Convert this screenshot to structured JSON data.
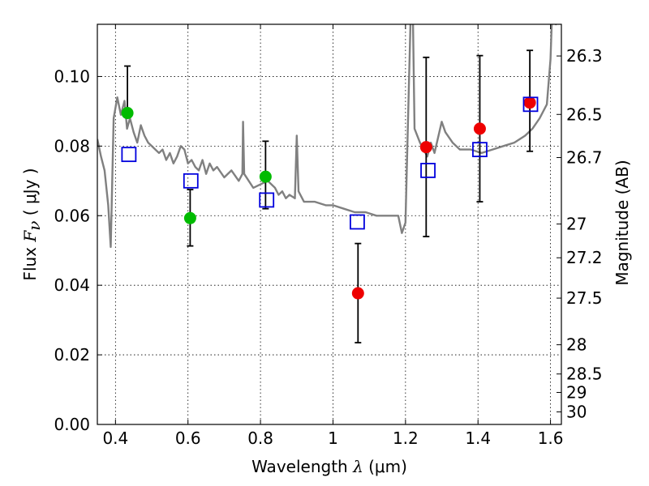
{
  "chart_data": {
    "type": "scatter",
    "xlabel": "Wavelength",
    "xlabel_symbol": "λ",
    "xlabel_unit": "(μm)",
    "ylabel": "Flux",
    "ylabel_symbol": "F",
    "ylabel_subscript": "ν",
    "ylabel_unit": "( μJy )",
    "y2label": "Magnitude (AB)",
    "xlim": [
      0.35,
      1.63
    ],
    "ylim": [
      0.0,
      0.115
    ],
    "grid": true,
    "x_ticks": [
      0.4,
      0.6,
      0.8,
      1.0,
      1.2,
      1.4,
      1.6
    ],
    "x_tick_labels": [
      "0.4",
      "0.6",
      "0.8",
      "1",
      "1.2",
      "1.4",
      "1.6"
    ],
    "y_ticks": [
      0.0,
      0.02,
      0.04,
      0.06,
      0.08,
      0.1
    ],
    "y_tick_labels": [
      "0.00",
      "0.02",
      "0.04",
      "0.06",
      "0.08",
      "0.10"
    ],
    "mag_ticks": [
      {
        "label": "26.3",
        "flux": 0.1059
      },
      {
        "label": "26.5",
        "flux": 0.0891
      },
      {
        "label": "26.7",
        "flux": 0.0767
      },
      {
        "label": "27",
        "flux": 0.0576
      },
      {
        "label": "27.2",
        "flux": 0.0479
      },
      {
        "label": "27.5",
        "flux": 0.0363
      },
      {
        "label": "28",
        "flux": 0.0229
      },
      {
        "label": "28.5",
        "flux": 0.0145
      },
      {
        "label": "29",
        "flux": 0.0092
      },
      {
        "label": "30",
        "flux": 0.0036
      }
    ],
    "series": [
      {
        "kind": "template-spectrum",
        "color": "#808080",
        "points": [
          [
            0.35,
            0.082
          ],
          [
            0.36,
            0.077
          ],
          [
            0.37,
            0.073
          ],
          [
            0.38,
            0.063
          ],
          [
            0.387,
            0.051
          ],
          [
            0.395,
            0.088
          ],
          [
            0.405,
            0.094
          ],
          [
            0.415,
            0.089
          ],
          [
            0.425,
            0.093
          ],
          [
            0.432,
            0.085
          ],
          [
            0.44,
            0.088
          ],
          [
            0.45,
            0.084
          ],
          [
            0.46,
            0.081
          ],
          [
            0.47,
            0.086
          ],
          [
            0.48,
            0.083
          ],
          [
            0.49,
            0.081
          ],
          [
            0.5,
            0.08
          ],
          [
            0.51,
            0.079
          ],
          [
            0.52,
            0.078
          ],
          [
            0.53,
            0.079
          ],
          [
            0.54,
            0.076
          ],
          [
            0.55,
            0.078
          ],
          [
            0.56,
            0.075
          ],
          [
            0.57,
            0.077
          ],
          [
            0.58,
            0.08
          ],
          [
            0.59,
            0.079
          ],
          [
            0.6,
            0.075
          ],
          [
            0.61,
            0.076
          ],
          [
            0.62,
            0.074
          ],
          [
            0.63,
            0.073
          ],
          [
            0.64,
            0.076
          ],
          [
            0.65,
            0.072
          ],
          [
            0.66,
            0.075
          ],
          [
            0.67,
            0.073
          ],
          [
            0.68,
            0.074
          ],
          [
            0.7,
            0.071
          ],
          [
            0.72,
            0.073
          ],
          [
            0.74,
            0.07
          ],
          [
            0.75,
            0.072
          ],
          [
            0.752,
            0.087
          ],
          [
            0.755,
            0.072
          ],
          [
            0.78,
            0.068
          ],
          [
            0.8,
            0.069
          ],
          [
            0.82,
            0.07
          ],
          [
            0.84,
            0.068
          ],
          [
            0.85,
            0.066
          ],
          [
            0.86,
            0.067
          ],
          [
            0.87,
            0.065
          ],
          [
            0.88,
            0.066
          ],
          [
            0.895,
            0.065
          ],
          [
            0.9,
            0.083
          ],
          [
            0.905,
            0.067
          ],
          [
            0.92,
            0.064
          ],
          [
            0.95,
            0.064
          ],
          [
            0.98,
            0.063
          ],
          [
            1.0,
            0.063
          ],
          [
            1.03,
            0.062
          ],
          [
            1.06,
            0.061
          ],
          [
            1.09,
            0.061
          ],
          [
            1.12,
            0.06
          ],
          [
            1.15,
            0.06
          ],
          [
            1.18,
            0.06
          ],
          [
            1.19,
            0.055
          ],
          [
            1.2,
            0.058
          ],
          [
            1.21,
            0.1
          ],
          [
            1.215,
            0.12
          ],
          [
            1.22,
            0.12
          ],
          [
            1.225,
            0.085
          ],
          [
            1.24,
            0.081
          ],
          [
            1.26,
            0.077
          ],
          [
            1.27,
            0.081
          ],
          [
            1.28,
            0.078
          ],
          [
            1.3,
            0.087
          ],
          [
            1.31,
            0.084
          ],
          [
            1.33,
            0.081
          ],
          [
            1.35,
            0.079
          ],
          [
            1.38,
            0.079
          ],
          [
            1.41,
            0.078
          ],
          [
            1.44,
            0.079
          ],
          [
            1.47,
            0.08
          ],
          [
            1.5,
            0.081
          ],
          [
            1.53,
            0.083
          ],
          [
            1.55,
            0.085
          ],
          [
            1.57,
            0.088
          ],
          [
            1.59,
            0.092
          ],
          [
            1.6,
            0.105
          ],
          [
            1.605,
            0.12
          ],
          [
            1.61,
            0.12
          ],
          [
            1.615,
            0.115
          ],
          [
            1.62,
            0.12
          ],
          [
            1.625,
            0.12
          ]
        ]
      },
      {
        "kind": "observed-green",
        "color": "#00bb00",
        "points": [
          {
            "x": 0.433,
            "y": 0.0895,
            "err_hi": 0.103,
            "err_lo": 0.0895
          },
          {
            "x": 0.606,
            "y": 0.0593,
            "err_hi": 0.0675,
            "err_lo": 0.0513
          },
          {
            "x": 0.814,
            "y": 0.0712,
            "err_hi": 0.0814,
            "err_lo": 0.062
          }
        ]
      },
      {
        "kind": "observed-red",
        "color": "#ee0000",
        "points": [
          {
            "x": 1.069,
            "y": 0.0377,
            "err_hi": 0.052,
            "err_lo": 0.0235
          },
          {
            "x": 1.257,
            "y": 0.0797,
            "err_hi": 0.1055,
            "err_lo": 0.054
          },
          {
            "x": 1.405,
            "y": 0.085,
            "err_hi": 0.106,
            "err_lo": 0.064
          },
          {
            "x": 1.543,
            "y": 0.0925,
            "err_hi": 0.1075,
            "err_lo": 0.0785
          }
        ]
      },
      {
        "kind": "model-squares",
        "color": "#0000dd",
        "points": [
          {
            "x": 0.437,
            "y": 0.0776
          },
          {
            "x": 0.608,
            "y": 0.07
          },
          {
            "x": 0.817,
            "y": 0.0645
          },
          {
            "x": 1.067,
            "y": 0.0582
          },
          {
            "x": 1.262,
            "y": 0.073
          },
          {
            "x": 1.405,
            "y": 0.079
          },
          {
            "x": 1.545,
            "y": 0.092
          }
        ]
      }
    ]
  }
}
